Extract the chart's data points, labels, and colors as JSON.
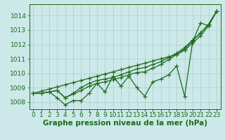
{
  "x": [
    0,
    1,
    2,
    3,
    4,
    5,
    6,
    7,
    8,
    9,
    10,
    11,
    12,
    13,
    14,
    15,
    16,
    17,
    18,
    19,
    20,
    21,
    22,
    23
  ],
  "series_zigzag": [
    1008.6,
    1008.6,
    1008.7,
    1008.3,
    1007.8,
    1008.1,
    1008.1,
    1008.6,
    1009.3,
    1008.7,
    1009.8,
    1009.1,
    1009.8,
    1009.0,
    1008.4,
    1009.4,
    1009.6,
    1009.9,
    1010.5,
    1008.4,
    1012.2,
    1013.5,
    1013.3,
    1014.3
  ],
  "series_smooth1": [
    1008.6,
    1008.6,
    1008.7,
    1008.8,
    1008.3,
    1008.6,
    1009.0,
    1009.3,
    1009.5,
    1009.6,
    1009.7,
    1009.9,
    1010.1,
    1010.3,
    1010.4,
    1010.6,
    1010.8,
    1011.1,
    1011.4,
    1011.8,
    1012.3,
    1012.8,
    1013.4,
    1014.3
  ],
  "series_straight": [
    1008.6,
    1008.75,
    1008.9,
    1009.05,
    1009.2,
    1009.35,
    1009.5,
    1009.65,
    1009.8,
    1009.95,
    1010.1,
    1010.25,
    1010.4,
    1010.55,
    1010.7,
    1010.85,
    1011.0,
    1011.15,
    1011.3,
    1011.6,
    1012.1,
    1012.6,
    1013.3,
    1014.3
  ],
  "series_smooth2": [
    1008.6,
    1008.6,
    1008.7,
    1008.8,
    1008.3,
    1008.55,
    1008.8,
    1009.1,
    1009.3,
    1009.4,
    1009.55,
    1009.7,
    1009.9,
    1010.05,
    1010.1,
    1010.35,
    1010.6,
    1010.95,
    1011.3,
    1011.7,
    1012.25,
    1012.8,
    1013.4,
    1014.3
  ],
  "line_color": "#1a6b1a",
  "marker": "+",
  "markersize": 4,
  "linewidth": 0.9,
  "bg_color": "#cce8e8",
  "grid_color": "#aacfcf",
  "text_color": "#1a6b1a",
  "xlabel": "Graphe pression niveau de la mer (hPa)",
  "ylim": [
    1007.5,
    1014.8
  ],
  "yticks": [
    1008,
    1009,
    1010,
    1011,
    1012,
    1013,
    1014
  ],
  "tick_fontsize": 6.5,
  "label_fontsize": 7.5
}
